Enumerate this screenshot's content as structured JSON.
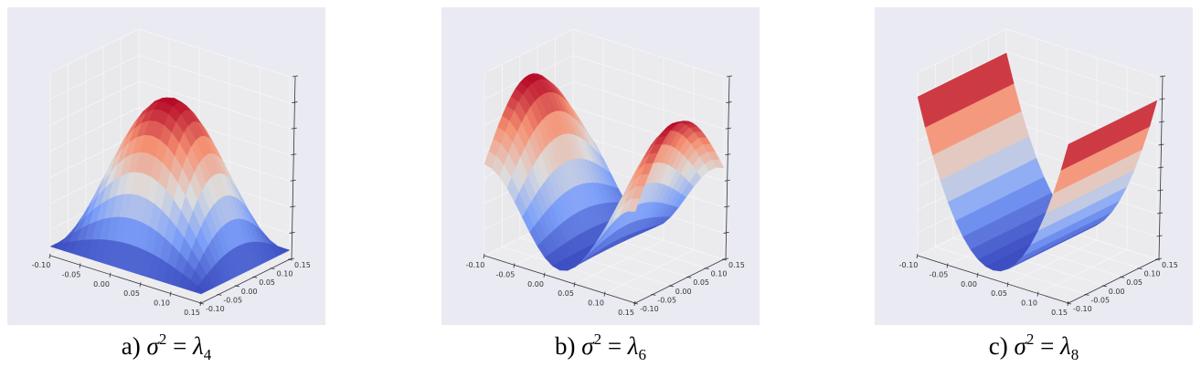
{
  "figure": {
    "background": "#ffffff",
    "panel_background": "#eaeaf2",
    "pane_color": "#ececee",
    "grid_color": "#f6f6f8",
    "axis_color": "#333333",
    "colormap": "coolwarm"
  },
  "chart_data": [
    {
      "type": "surface3d",
      "panel": "a",
      "caption": {
        "prefix": "a)",
        "var": "σ",
        "power": "2",
        "eq": " = ",
        "lambda": "λ",
        "index": "4"
      },
      "shape": "dome",
      "description": "Concave dome, single maximum at center, falling off on all sides",
      "xlabel": "",
      "ylabel": "",
      "zlabel": "",
      "xlim": [
        -0.1,
        0.15
      ],
      "ylim": [
        -0.1,
        0.15
      ],
      "x_ticks": [
        "-0.10",
        "-0.05",
        "0.00",
        "0.05",
        "0.10",
        "0.15"
      ],
      "y_ticks": [
        "-0.10",
        "-0.05",
        "0.00",
        "0.05",
        "0.10",
        "0.15"
      ],
      "z_ticks_count": 8,
      "z_tick_labels_visible": false,
      "grid": true
    },
    {
      "type": "surface3d",
      "panel": "b",
      "caption": {
        "prefix": "b)",
        "var": "σ",
        "power": "2",
        "eq": " = ",
        "lambda": "λ",
        "index": "6"
      },
      "shape": "saddle-wave",
      "description": "Two ridges separated by a valley along x; sinusoidal with one full period",
      "xlabel": "",
      "ylabel": "",
      "zlabel": "",
      "xlim": [
        -0.1,
        0.15
      ],
      "ylim": [
        -0.1,
        0.15
      ],
      "x_ticks": [
        "-0.10",
        "-0.05",
        "0.00",
        "0.05",
        "0.10",
        "0.15"
      ],
      "y_ticks": [
        "-0.10",
        "-0.05",
        "0.00",
        "0.05",
        "0.10",
        "0.15"
      ],
      "z_ticks_count": 8,
      "z_tick_labels_visible": false,
      "grid": true
    },
    {
      "type": "surface3d",
      "panel": "c",
      "caption": {
        "prefix": "c)",
        "var": "σ",
        "power": "2",
        "eq": " = ",
        "lambda": "λ",
        "index": "8"
      },
      "shape": "trough",
      "description": "U-shaped trough: minimum along the center in x, rising to high walls at both x edges, nearly constant along y",
      "xlabel": "",
      "ylabel": "",
      "zlabel": "",
      "xlim": [
        -0.1,
        0.15
      ],
      "ylim": [
        -0.1,
        0.15
      ],
      "x_ticks": [
        "-0.10",
        "-0.05",
        "0.00",
        "0.05",
        "0.10",
        "0.15"
      ],
      "y_ticks": [
        "-0.10",
        "-0.05",
        "0.00",
        "0.05",
        "0.10",
        "0.15"
      ],
      "z_ticks_count": 9,
      "z_tick_labels_visible": false,
      "grid": true
    }
  ]
}
